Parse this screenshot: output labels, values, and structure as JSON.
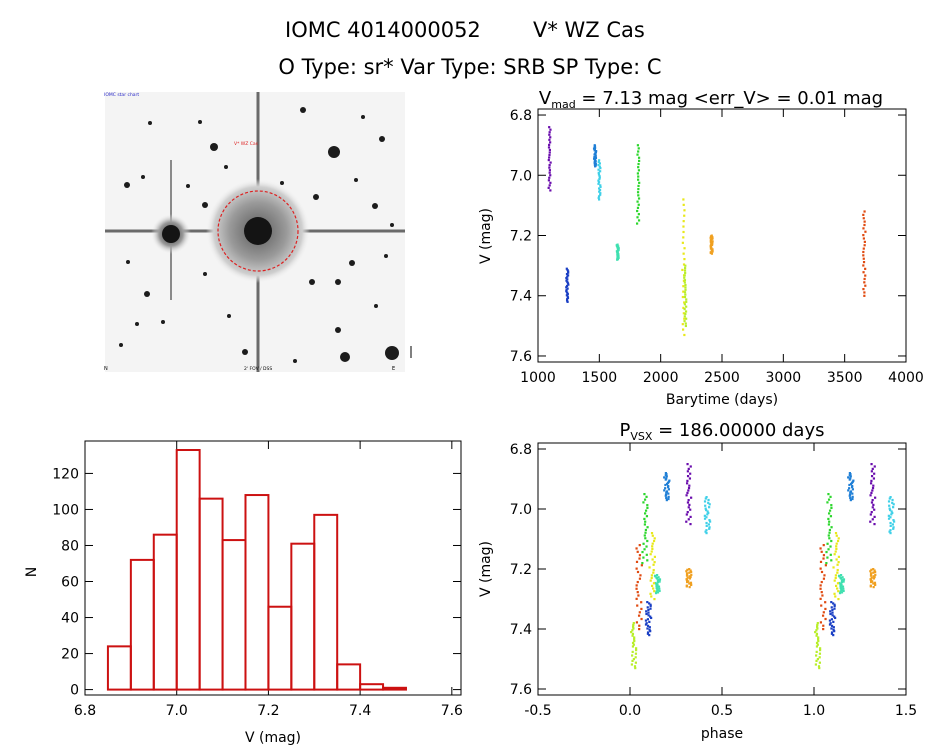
{
  "header": {
    "line1_id": "IOMC 4014000052",
    "line1_name": "V* WZ Cas",
    "line2": "O Type: sr*  Var Type: SRB  SP Type: C"
  },
  "finder": {
    "label_top_left": "IOMC star chart",
    "label_target": "V* WZ Cas",
    "label_bottom_left": "N",
    "label_bottom_center": "2' FOV / DSS",
    "label_bottom_right": "E",
    "colors": {
      "target_circle": "#dd2222",
      "background": "#f4f4f4",
      "star": "#141414"
    }
  },
  "chart_data": [
    {
      "id": "light_curve",
      "type": "scatter",
      "title": "V_mad = 7.13 mag <err_V> = 0.01 mag",
      "title_parts": {
        "prefix": "V",
        "sub": "mad",
        "rest": " = 7.13 mag <err_V> = 0.01 mag"
      },
      "xlabel": "Barytime (days)",
      "ylabel": "V (mag)",
      "xlim": [
        1000,
        4000
      ],
      "ylim": [
        7.62,
        6.78
      ],
      "y_inverted": true,
      "xticks": [
        1000,
        1500,
        2000,
        2500,
        3000,
        3500,
        4000
      ],
      "yticks": [
        6.8,
        7.0,
        7.2,
        7.4,
        7.6
      ],
      "grid": false,
      "clusters": [
        {
          "x": 1095,
          "y_min": 6.84,
          "y_max": 7.05,
          "color": "#6a0dad"
        },
        {
          "x": 1238,
          "y_min": 7.31,
          "y_max": 7.42,
          "color": "#1a3fc4"
        },
        {
          "x": 1465,
          "y_min": 6.9,
          "y_max": 6.97,
          "color": "#1f7fd6"
        },
        {
          "x": 1500,
          "y_min": 6.95,
          "y_max": 7.08,
          "color": "#3fd0e8"
        },
        {
          "x": 1650,
          "y_min": 7.23,
          "y_max": 7.28,
          "color": "#3fe0b0"
        },
        {
          "x": 1815,
          "y_min": 6.9,
          "y_max": 7.16,
          "color": "#2cd62c"
        },
        {
          "x": 2185,
          "y_min": 7.08,
          "y_max": 7.53,
          "color": "#e8e81a"
        },
        {
          "x": 2200,
          "y_min": 7.3,
          "y_max": 7.5,
          "color": "#b8ee2a"
        },
        {
          "x": 2415,
          "y_min": 7.2,
          "y_max": 7.26,
          "color": "#f0a020"
        },
        {
          "x": 3660,
          "y_min": 7.12,
          "y_max": 7.4,
          "color": "#e04a10"
        }
      ]
    },
    {
      "id": "histogram",
      "type": "bar",
      "xlabel": "V (mag)",
      "ylabel": "N",
      "xlim": [
        6.8,
        7.62
      ],
      "ylim": [
        -3,
        138
      ],
      "xticks": [
        6.8,
        7.0,
        7.2,
        7.4,
        7.6
      ],
      "yticks": [
        0,
        20,
        40,
        60,
        80,
        100,
        120
      ],
      "bin_width": 0.05,
      "bin_starts": [
        6.85,
        6.9,
        6.95,
        7.0,
        7.05,
        7.1,
        7.15,
        7.2,
        7.25,
        7.3,
        7.35,
        7.4,
        7.45,
        7.5,
        7.55
      ],
      "values": [
        24,
        72,
        86,
        133,
        106,
        83,
        108,
        46,
        81,
        97,
        14,
        3,
        1,
        0,
        0
      ],
      "bar_color": "#cc1111"
    },
    {
      "id": "phase_curve",
      "type": "scatter",
      "title": "P_vsx = 186.00000 days",
      "title_parts": {
        "prefix": "P",
        "sub": "VSX",
        "rest": " = 186.00000 days"
      },
      "xlabel": "phase",
      "ylabel": "V (mag)",
      "xlim": [
        -0.5,
        1.5
      ],
      "ylim": [
        7.62,
        6.78
      ],
      "y_inverted": true,
      "xticks": [
        -0.5,
        0.0,
        0.5,
        1.0,
        1.5
      ],
      "yticks": [
        6.8,
        7.0,
        7.2,
        7.4,
        7.6
      ],
      "grid": false,
      "clusters": [
        {
          "x": 0.32,
          "y_min": 6.85,
          "y_max": 7.05,
          "color": "#6a0dad"
        },
        {
          "x": 0.1,
          "y_min": 7.31,
          "y_max": 7.42,
          "color": "#1a3fc4"
        },
        {
          "x": 0.2,
          "y_min": 6.88,
          "y_max": 6.97,
          "color": "#1f7fd6"
        },
        {
          "x": 0.42,
          "y_min": 6.96,
          "y_max": 7.08,
          "color": "#3fd0e8"
        },
        {
          "x": 0.15,
          "y_min": 7.22,
          "y_max": 7.28,
          "color": "#3fe0b0"
        },
        {
          "x": 0.08,
          "y_min": 6.95,
          "y_max": 7.18,
          "color": "#2cd62c"
        },
        {
          "x": 0.12,
          "y_min": 7.08,
          "y_max": 7.3,
          "color": "#e8e81a"
        },
        {
          "x": 0.02,
          "y_min": 7.38,
          "y_max": 7.53,
          "color": "#b8ee2a"
        },
        {
          "x": 0.32,
          "y_min": 7.2,
          "y_max": 7.26,
          "color": "#f0a020"
        },
        {
          "x": 0.05,
          "y_min": 7.12,
          "y_max": 7.4,
          "color": "#e04a10"
        }
      ]
    }
  ]
}
